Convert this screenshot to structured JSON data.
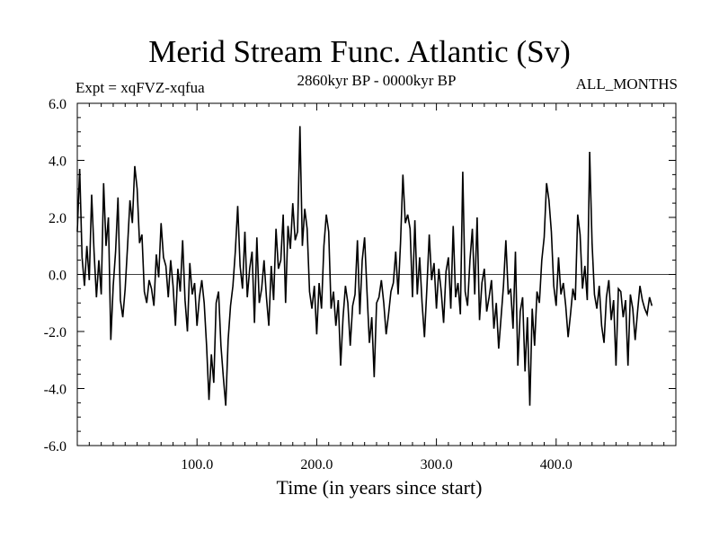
{
  "chart_data": {
    "type": "line",
    "title": "Merid Stream Func. Atlantic (Sv)",
    "subtitle_left": "Expt = xqFVZ-xqfua",
    "subtitle_center": "2860kyr BP - 0000kyr BP",
    "subtitle_right": "ALL_MONTHS",
    "xlabel": "Time (in years since start)",
    "ylabel": "",
    "xlim": [
      0,
      500
    ],
    "ylim": [
      -6,
      6
    ],
    "x_ticks": [
      100,
      200,
      300,
      400
    ],
    "x_tick_labels": [
      "100.0",
      "200.0",
      "300.0",
      "400.0"
    ],
    "y_ticks": [
      -6,
      -4,
      -2,
      0,
      2,
      4,
      6
    ],
    "y_tick_labels": [
      "-6.0",
      "-4.0",
      "-2.0",
      "0.0",
      "2.0",
      "4.0",
      "6.0"
    ],
    "reference_line": 0,
    "grid": false,
    "series": [
      {
        "name": "Merid Stream Func. Atlantic",
        "x_start": 0,
        "x_step": 2,
        "values": [
          1.5,
          3.7,
          0.6,
          -0.4,
          1.0,
          -0.2,
          2.8,
          0.8,
          -0.8,
          0.5,
          -0.7,
          3.2,
          1.0,
          2.0,
          -2.3,
          -0.4,
          0.8,
          2.7,
          -0.9,
          -1.5,
          -0.5,
          1.0,
          2.6,
          1.8,
          3.8,
          3.0,
          1.1,
          1.4,
          -0.6,
          -1.0,
          -0.2,
          -0.5,
          -1.1,
          0.7,
          -0.1,
          1.8,
          0.6,
          0.3,
          -0.8,
          0.5,
          -0.4,
          -1.8,
          0.2,
          -0.6,
          1.2,
          -0.9,
          -2.0,
          0.4,
          -0.7,
          -0.3,
          -1.8,
          -0.8,
          -0.2,
          -1.0,
          -2.5,
          -4.4,
          -2.8,
          -3.8,
          -1.0,
          -0.6,
          -2.5,
          -3.6,
          -4.6,
          -2.3,
          -1.1,
          -0.4,
          0.8,
          2.4,
          0.3,
          -0.5,
          1.5,
          -0.8,
          0.2,
          0.8,
          -1.7,
          1.3,
          -1.0,
          -0.5,
          0.5,
          -0.8,
          -1.8,
          0.3,
          -0.9,
          1.6,
          0.2,
          0.5,
          2.1,
          -1.0,
          1.7,
          0.9,
          2.5,
          1.2,
          1.5,
          5.2,
          1.0,
          2.3,
          1.6,
          -0.6,
          -1.2,
          -0.4,
          -2.1,
          -0.3,
          -1.2,
          1.0,
          2.1,
          1.5,
          -1.2,
          -0.6,
          -1.8,
          -0.9,
          -3.2,
          -1.5,
          -0.4,
          -1.0,
          -2.5,
          -1.1,
          -0.7,
          1.2,
          -1.4,
          0.5,
          1.3,
          -0.6,
          -2.4,
          -1.5,
          -3.6,
          -1.0,
          -0.8,
          -0.2,
          -1.0,
          -2.1,
          -1.4,
          -0.6,
          -0.3,
          0.8,
          -0.7,
          1.1,
          3.5,
          1.8,
          2.1,
          1.6,
          -0.8,
          1.9,
          -0.7,
          0.6,
          -1.0,
          -2.2,
          -0.5,
          1.4,
          -0.2,
          0.4,
          -1.2,
          0.2,
          -0.6,
          -1.7,
          0.1,
          0.6,
          -1.2,
          1.7,
          -0.8,
          -0.3,
          -1.4,
          3.6,
          -0.6,
          -1.1,
          0.5,
          1.6,
          -0.7,
          2.0,
          -1.6,
          -0.3,
          0.2,
          -1.3,
          -0.8,
          -0.2,
          -1.9,
          -1.0,
          -2.6,
          -1.5,
          -0.4,
          1.2,
          -0.7,
          -0.5,
          -1.9,
          0.8,
          -3.2,
          -1.3,
          -0.8,
          -3.4,
          -1.5,
          -4.6,
          -1.2,
          -2.5,
          -0.6,
          -1.0,
          0.5,
          1.3,
          3.2,
          2.6,
          1.5,
          -0.4,
          -1.1,
          0.6,
          -0.7,
          -0.3,
          -1.1,
          -2.2,
          -1.4,
          -0.5,
          -0.9,
          2.1,
          1.4,
          -0.5,
          0.3,
          -0.9,
          4.3,
          1.1,
          -0.7,
          -1.2,
          -0.4,
          -1.8,
          -2.4,
          -0.8,
          -0.2,
          -1.6,
          -0.9,
          -3.2,
          -0.5,
          -0.6,
          -1.5,
          -0.9,
          -3.2,
          -0.7,
          -1.2,
          -2.3,
          -1.3,
          -0.4,
          -0.9,
          -1.2,
          -1.4,
          -0.8,
          -1.1
        ]
      }
    ]
  }
}
